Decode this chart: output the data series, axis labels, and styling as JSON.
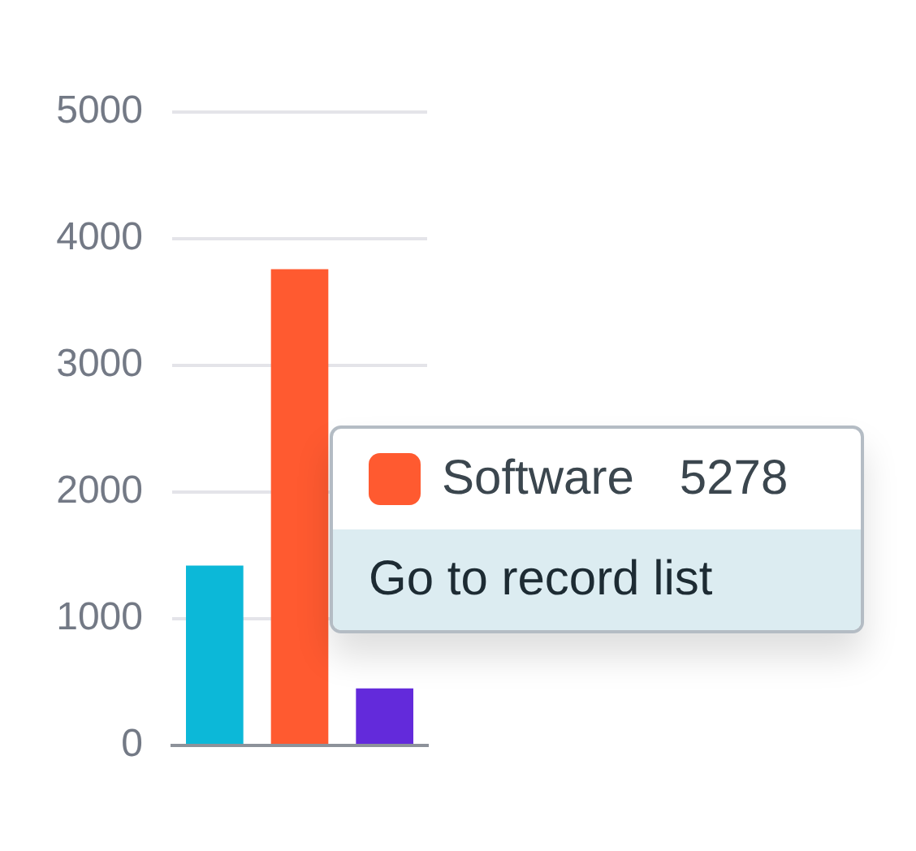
{
  "chart_data": {
    "type": "bar",
    "categories": [
      null,
      null,
      null
    ],
    "values": [
      1420,
      3760,
      450
    ],
    "colors": [
      "#0cb8d8",
      "#ff5a30",
      "#632adb"
    ],
    "ylim": [
      0,
      5000
    ],
    "yticks": [
      0,
      1000,
      2000,
      3000,
      4000,
      5000
    ],
    "grid": "y",
    "tick_labels": "y",
    "annotations": [
      "Software",
      "5278",
      "Go to record list"
    ]
  }
}
